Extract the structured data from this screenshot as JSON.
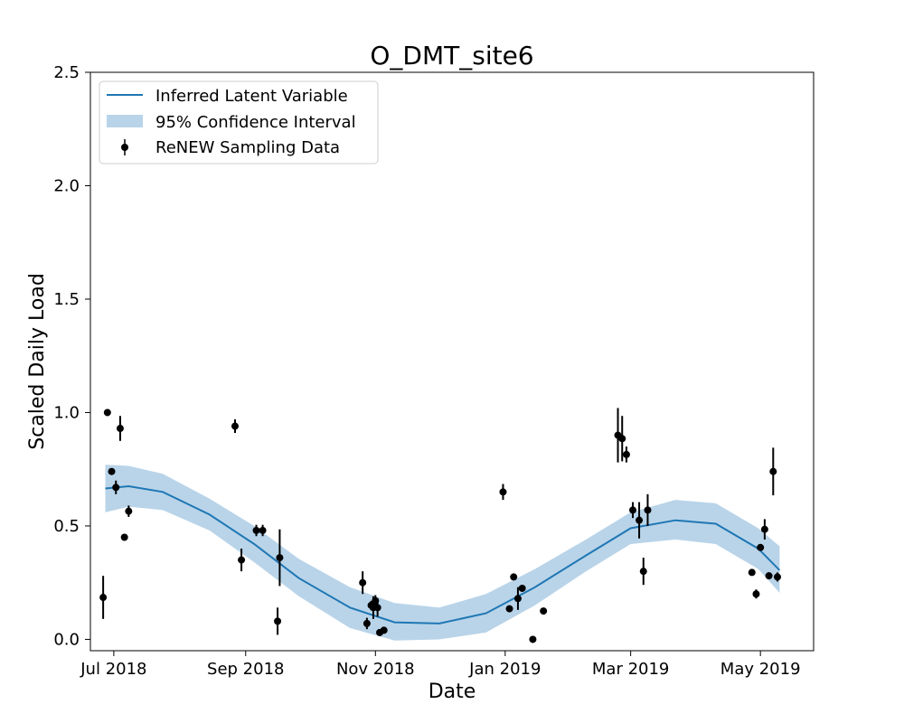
{
  "chart_data": {
    "type": "line",
    "title": "O_DMT_site6",
    "xlabel": "Date",
    "ylabel": "Scaled Daily Load",
    "ylim": [
      -0.05,
      2.5
    ],
    "xlim": [
      "2018-06-20",
      "2019-05-26"
    ],
    "x_ticks": [
      {
        "date": "2018-07-01",
        "label": "Jul 2018"
      },
      {
        "date": "2018-09-01",
        "label": "Sep 2018"
      },
      {
        "date": "2018-11-01",
        "label": "Nov 2018"
      },
      {
        "date": "2019-01-01",
        "label": "Jan 2019"
      },
      {
        "date": "2019-03-01",
        "label": "Mar 2019"
      },
      {
        "date": "2019-05-01",
        "label": "May 2019"
      }
    ],
    "y_ticks": [
      0.0,
      0.5,
      1.0,
      1.5,
      2.0,
      2.5
    ],
    "y_tick_labels": [
      "0.0",
      "0.5",
      "1.0",
      "1.5",
      "2.0",
      "2.5"
    ],
    "grid": false,
    "legend": {
      "position": "top-left",
      "entries": [
        "Inferred Latent Variable",
        "95% Confidence Interval",
        "ReNEW Sampling Data"
      ]
    },
    "colors": {
      "line": "#1f77b4",
      "band": "#b9d4e9",
      "points": "#000000"
    },
    "latent_variable": {
      "x": [
        "2018-06-27",
        "2018-07-08",
        "2018-07-24",
        "2018-08-15",
        "2018-09-05",
        "2018-09-26",
        "2018-10-20",
        "2018-11-10",
        "2018-12-01",
        "2018-12-23",
        "2019-01-15",
        "2019-02-08",
        "2019-03-01",
        "2019-03-22",
        "2019-04-10",
        "2019-04-30",
        "2019-05-10"
      ],
      "y": [
        0.665,
        0.675,
        0.65,
        0.55,
        0.42,
        0.27,
        0.14,
        0.075,
        0.07,
        0.115,
        0.23,
        0.37,
        0.49,
        0.525,
        0.51,
        0.4,
        0.305
      ],
      "lower": [
        0.56,
        0.585,
        0.57,
        0.48,
        0.34,
        0.19,
        0.05,
        -0.005,
        0.0,
        0.03,
        0.15,
        0.3,
        0.42,
        0.44,
        0.42,
        0.31,
        0.205
      ],
      "upper": [
        0.77,
        0.765,
        0.73,
        0.62,
        0.5,
        0.355,
        0.23,
        0.16,
        0.14,
        0.2,
        0.31,
        0.44,
        0.56,
        0.615,
        0.6,
        0.49,
        0.41
      ]
    },
    "samples": {
      "x": [
        "2018-06-26",
        "2018-06-28",
        "2018-06-30",
        "2018-07-02",
        "2018-07-04",
        "2018-07-06",
        "2018-07-08",
        "2018-08-27",
        "2018-08-30",
        "2018-09-06",
        "2018-09-09",
        "2018-09-16",
        "2018-09-17",
        "2018-10-26",
        "2018-10-28",
        "2018-10-30",
        "2018-10-31",
        "2018-11-01",
        "2018-11-02",
        "2018-11-03",
        "2018-11-05",
        "2018-12-31",
        "2019-01-03",
        "2019-01-05",
        "2019-01-07",
        "2019-01-09",
        "2019-01-14",
        "2019-01-19",
        "2019-02-23",
        "2019-02-25",
        "2019-02-27",
        "2019-03-02",
        "2019-03-05",
        "2019-03-07",
        "2019-03-09",
        "2019-04-27",
        "2019-04-29",
        "2019-05-01",
        "2019-05-03",
        "2019-05-05",
        "2019-05-07",
        "2019-05-09"
      ],
      "y": [
        0.185,
        1.0,
        0.74,
        0.67,
        0.93,
        0.45,
        0.565,
        0.94,
        0.35,
        0.48,
        0.48,
        0.08,
        0.36,
        0.25,
        0.07,
        0.15,
        0.14,
        0.17,
        0.14,
        0.03,
        0.04,
        0.65,
        0.135,
        0.275,
        0.18,
        0.225,
        0.0,
        0.125,
        0.9,
        0.885,
        0.815,
        0.57,
        0.525,
        0.3,
        0.57,
        0.295,
        0.2,
        0.405,
        0.485,
        0.28,
        0.74,
        0.275
      ],
      "err": [
        0.095,
        0.015,
        0.015,
        0.03,
        0.055,
        0.01,
        0.025,
        0.03,
        0.05,
        0.025,
        0.025,
        0.06,
        0.125,
        0.05,
        0.025,
        0.02,
        0.05,
        0.025,
        0.04,
        0.015,
        0.01,
        0.035,
        0.01,
        0.01,
        0.05,
        0.015,
        0.01,
        0.01,
        0.12,
        0.1,
        0.035,
        0.035,
        0.08,
        0.06,
        0.07,
        0.01,
        0.02,
        0.01,
        0.045,
        0.015,
        0.105,
        0.02
      ]
    }
  }
}
